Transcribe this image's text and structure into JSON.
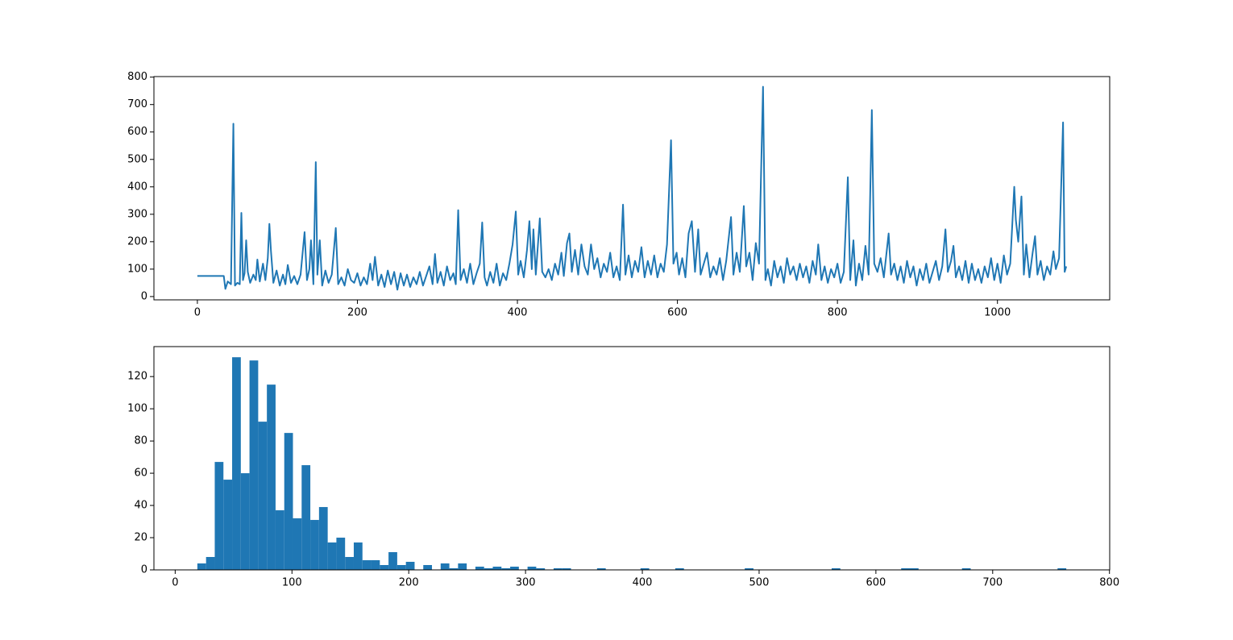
{
  "chart_data": [
    {
      "type": "line",
      "color": "#1f77b4",
      "x": [
        0,
        33,
        35,
        38,
        42,
        45,
        47,
        50,
        53,
        55,
        57,
        59,
        61,
        63,
        66,
        70,
        73,
        75,
        78,
        82,
        85,
        88,
        90,
        92,
        95,
        99,
        103,
        107,
        110,
        113,
        117,
        121,
        125,
        129,
        134,
        137,
        140,
        142,
        145,
        148,
        150,
        153,
        156,
        160,
        164,
        168,
        173,
        176,
        180,
        184,
        188,
        192,
        196,
        200,
        204,
        208,
        212,
        216,
        219,
        222,
        226,
        230,
        234,
        238,
        242,
        246,
        250,
        254,
        258,
        262,
        266,
        270,
        274,
        278,
        282,
        286,
        290,
        294,
        297,
        300,
        304,
        308,
        312,
        316,
        320,
        323,
        326,
        329,
        333,
        337,
        341,
        345,
        349,
        353,
        356,
        359,
        362,
        366,
        370,
        374,
        378,
        382,
        386,
        390,
        394,
        398,
        401,
        404,
        408,
        412,
        415,
        418,
        420,
        423,
        428,
        431,
        435,
        439,
        443,
        447,
        451,
        455,
        458,
        462,
        465,
        468,
        472,
        476,
        480,
        484,
        488,
        492,
        496,
        500,
        504,
        508,
        512,
        516,
        520,
        524,
        528,
        532,
        535,
        539,
        543,
        547,
        551,
        555,
        559,
        563,
        567,
        571,
        575,
        579,
        583,
        587,
        592,
        595,
        599,
        602,
        606,
        610,
        614,
        618,
        622,
        626,
        629,
        633,
        637,
        641,
        645,
        649,
        653,
        657,
        661,
        667,
        670,
        674,
        678,
        683,
        686,
        690,
        694,
        698,
        702,
        707,
        710,
        713,
        717,
        721,
        725,
        729,
        733,
        737,
        741,
        745,
        749,
        753,
        757,
        761,
        765,
        769,
        773,
        776,
        780,
        784,
        788,
        792,
        796,
        800,
        804,
        808,
        813,
        816,
        820,
        823,
        827,
        831,
        835,
        839,
        843,
        846,
        850,
        854,
        858,
        864,
        867,
        871,
        875,
        879,
        883,
        887,
        891,
        895,
        899,
        903,
        907,
        911,
        915,
        919,
        923,
        927,
        931,
        935,
        938,
        942,
        945,
        948,
        952,
        956,
        960,
        964,
        968,
        972,
        976,
        980,
        984,
        988,
        992,
        996,
        1000,
        1004,
        1008,
        1012,
        1016,
        1021,
        1023,
        1026,
        1030,
        1033,
        1036,
        1040,
        1044,
        1047,
        1050,
        1054,
        1058,
        1062,
        1066,
        1070,
        1073,
        1077,
        1082,
        1084,
        1086
      ],
      "values": [
        75,
        75,
        28,
        55,
        45,
        630,
        40,
        50,
        45,
        305,
        60,
        85,
        205,
        90,
        50,
        80,
        60,
        135,
        55,
        120,
        60,
        140,
        265,
        165,
        50,
        95,
        40,
        80,
        45,
        115,
        50,
        75,
        45,
        80,
        235,
        60,
        100,
        205,
        45,
        490,
        80,
        205,
        40,
        95,
        50,
        80,
        250,
        45,
        70,
        40,
        100,
        60,
        50,
        85,
        40,
        70,
        45,
        120,
        60,
        145,
        40,
        80,
        35,
        95,
        45,
        90,
        25,
        85,
        40,
        80,
        35,
        70,
        45,
        90,
        40,
        75,
        110,
        45,
        155,
        50,
        90,
        40,
        110,
        60,
        85,
        45,
        315,
        60,
        100,
        50,
        120,
        45,
        85,
        120,
        270,
        70,
        40,
        90,
        50,
        120,
        40,
        85,
        60,
        120,
        190,
        310,
        80,
        130,
        70,
        170,
        275,
        100,
        245,
        80,
        285,
        90,
        70,
        100,
        60,
        120,
        80,
        160,
        75,
        195,
        230,
        90,
        170,
        80,
        190,
        110,
        80,
        190,
        100,
        140,
        70,
        120,
        90,
        160,
        70,
        110,
        60,
        335,
        80,
        150,
        70,
        130,
        90,
        180,
        70,
        130,
        80,
        150,
        70,
        120,
        90,
        190,
        570,
        120,
        160,
        80,
        140,
        70,
        230,
        275,
        90,
        245,
        80,
        120,
        160,
        70,
        110,
        80,
        140,
        60,
        130,
        290,
        80,
        160,
        90,
        330,
        110,
        160,
        60,
        195,
        120,
        765,
        60,
        100,
        40,
        130,
        70,
        110,
        50,
        140,
        80,
        110,
        60,
        120,
        70,
        110,
        50,
        130,
        80,
        190,
        60,
        110,
        50,
        100,
        70,
        120,
        50,
        90,
        435,
        60,
        205,
        40,
        120,
        60,
        185,
        80,
        680,
        120,
        90,
        140,
        70,
        230,
        80,
        120,
        60,
        110,
        50,
        130,
        70,
        110,
        40,
        100,
        60,
        120,
        50,
        90,
        130,
        60,
        110,
        245,
        90,
        130,
        185,
        70,
        110,
        60,
        130,
        50,
        120,
        60,
        100,
        50,
        110,
        70,
        140,
        60,
        120,
        50,
        150,
        80,
        120,
        400,
        280,
        200,
        365,
        80,
        190,
        70,
        160,
        220,
        80,
        130,
        60,
        110,
        80,
        165,
        100,
        140,
        635,
        90,
        110
      ],
      "xlim": [
        -54.3,
        1140.3
      ],
      "ylim": [
        -12,
        802
      ],
      "xticks": [
        0,
        200,
        400,
        600,
        800,
        1000
      ],
      "yticks": [
        0,
        100,
        200,
        300,
        400,
        500,
        600,
        700,
        800
      ]
    },
    {
      "type": "histogram",
      "color": "#1f77b4",
      "bins": [
        19,
        26.44,
        33.88,
        41.32,
        48.76,
        56.2,
        63.64,
        71.08,
        78.52,
        85.96,
        93.4,
        100.84,
        108.28,
        115.72,
        123.16,
        130.6,
        138.04,
        145.48,
        152.92,
        160.36,
        167.8,
        175.24,
        182.68,
        190.12,
        197.56,
        205,
        212.44,
        219.88,
        227.32,
        234.76,
        242.2,
        249.64,
        257.08,
        264.52,
        271.96,
        279.4,
        286.84,
        294.28,
        301.72,
        309.16,
        316.6,
        324.04,
        331.48,
        338.92,
        346.36,
        353.8,
        361.24,
        368.68,
        376.12,
        383.56,
        391,
        398.44,
        405.88,
        413.32,
        420.76,
        428.2,
        435.64,
        443.08,
        450.52,
        457.96,
        465.4,
        472.84,
        480.28,
        487.72,
        495.16,
        502.6,
        510.04,
        517.48,
        524.92,
        532.36,
        539.8,
        547.24,
        554.68,
        562.12,
        569.56,
        577,
        584.44,
        591.88,
        599.32,
        606.76,
        614.2,
        621.64,
        629.08,
        636.52,
        643.96,
        651.4,
        658.84,
        666.28,
        673.72,
        681.16,
        688.6,
        696.04,
        703.48,
        710.92,
        718.36,
        725.8,
        733.24,
        740.68,
        748.12,
        755.56,
        763
      ],
      "values": [
        4,
        8,
        67,
        56,
        132,
        60,
        130,
        92,
        115,
        37,
        85,
        32,
        65,
        31,
        39,
        17,
        20,
        8,
        17,
        6,
        6,
        3,
        11,
        3,
        5,
        0,
        3,
        0,
        4,
        1,
        4,
        0,
        2,
        1,
        2,
        1,
        2,
        0,
        2,
        1,
        0,
        1,
        1,
        0,
        0,
        0,
        1,
        0,
        0,
        0,
        0,
        1,
        0,
        0,
        0,
        1,
        0,
        0,
        0,
        0,
        0,
        0,
        0,
        1,
        0,
        0,
        0,
        0,
        0,
        0,
        0,
        0,
        0,
        1,
        0,
        0,
        0,
        0,
        0,
        0,
        0,
        1,
        1,
        0,
        0,
        0,
        0,
        0,
        1,
        0,
        0,
        0,
        0,
        0,
        0,
        0,
        0,
        0,
        0,
        1
      ],
      "xlim": [
        -18.2,
        800.2
      ],
      "ylim": [
        0,
        138.6
      ],
      "xticks": [
        0,
        100,
        200,
        300,
        400,
        500,
        600,
        700,
        800
      ],
      "yticks": [
        0,
        20,
        40,
        60,
        80,
        100,
        120
      ]
    }
  ]
}
